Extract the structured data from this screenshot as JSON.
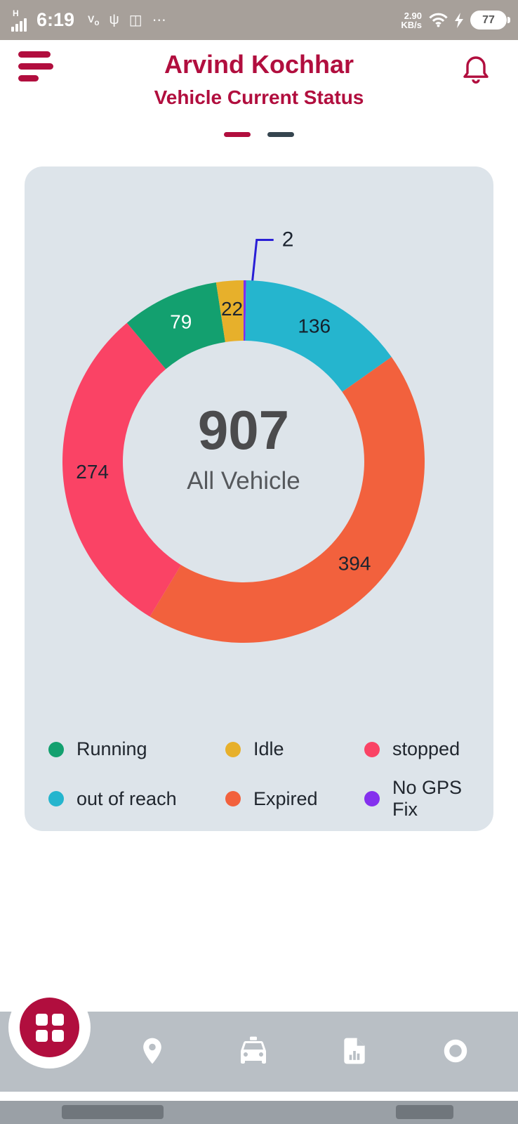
{
  "status_bar": {
    "network": "H",
    "time": "6:19",
    "speed_line1": "2.90",
    "speed_line2": "KB/s",
    "battery": "77",
    "icons": [
      "signal-bars-icon",
      "volte-icon",
      "usb-icon",
      "sms-icon",
      "more-icon",
      "wifi-icon",
      "charging-bolt-icon",
      "battery-icon"
    ]
  },
  "header": {
    "title": "Arvind Kochhar",
    "subtitle": "Vehicle Current Status",
    "icons": [
      "hamburger-menu-icon",
      "notification-bell-icon"
    ]
  },
  "page_indicator": {
    "count": 2,
    "active_index": 0
  },
  "chart_data": {
    "type": "pie",
    "title": "Vehicle Current Status",
    "center_value": "907",
    "center_label": "All Vehicle",
    "total": 907,
    "categories": [
      "No GPS Fix",
      "out of reach",
      "Expired",
      "stopped",
      "Running",
      "Idle"
    ],
    "values": [
      2,
      136,
      394,
      274,
      79,
      22
    ],
    "callout_color": "#2a1fd6",
    "legend_position": "bottom",
    "segments": [
      {
        "label": "No GPS Fix",
        "value": 2,
        "color": "#7b2ff0",
        "label_color": "#1c2430",
        "callout": true
      },
      {
        "label": "out of reach",
        "value": 136,
        "color": "#25b5ce",
        "label_color": "#15202b",
        "callout": false
      },
      {
        "label": "Expired",
        "value": 394,
        "color": "#f2613d",
        "label_color": "#1c2430",
        "callout": false
      },
      {
        "label": "stopped",
        "value": 274,
        "color": "#fa4365",
        "label_color": "#1c2430",
        "callout": false
      },
      {
        "label": "Running",
        "value": 79,
        "color": "#13a06f",
        "label_color": "#ffffff",
        "callout": false
      },
      {
        "label": "Idle",
        "value": 22,
        "color": "#e7b02b",
        "label_color": "#1c2430",
        "callout": false
      }
    ],
    "legend": [
      {
        "label": "Running",
        "color": "#13a06f"
      },
      {
        "label": "Idle",
        "color": "#e7b02b"
      },
      {
        "label": "stopped",
        "color": "#fa4365"
      },
      {
        "label": "out of reach",
        "color": "#25b5ce"
      },
      {
        "label": "Expired",
        "color": "#f2613d"
      },
      {
        "label": "No GPS Fix",
        "color": "#8430ee"
      }
    ]
  },
  "bottom_nav": {
    "items": [
      {
        "name": "dashboard",
        "icon": "grid-icon"
      },
      {
        "name": "location",
        "icon": "map-pin-icon"
      },
      {
        "name": "vehicles",
        "icon": "taxi-icon"
      },
      {
        "name": "reports",
        "icon": "report-icon"
      },
      {
        "name": "status",
        "icon": "record-circle-icon"
      }
    ]
  },
  "colors": {
    "accent": "#b10e3e",
    "card_bg": "#dde4ea",
    "status_bar_bg": "#a7a09a",
    "nav_bar_bg": "#b9bfc5"
  }
}
